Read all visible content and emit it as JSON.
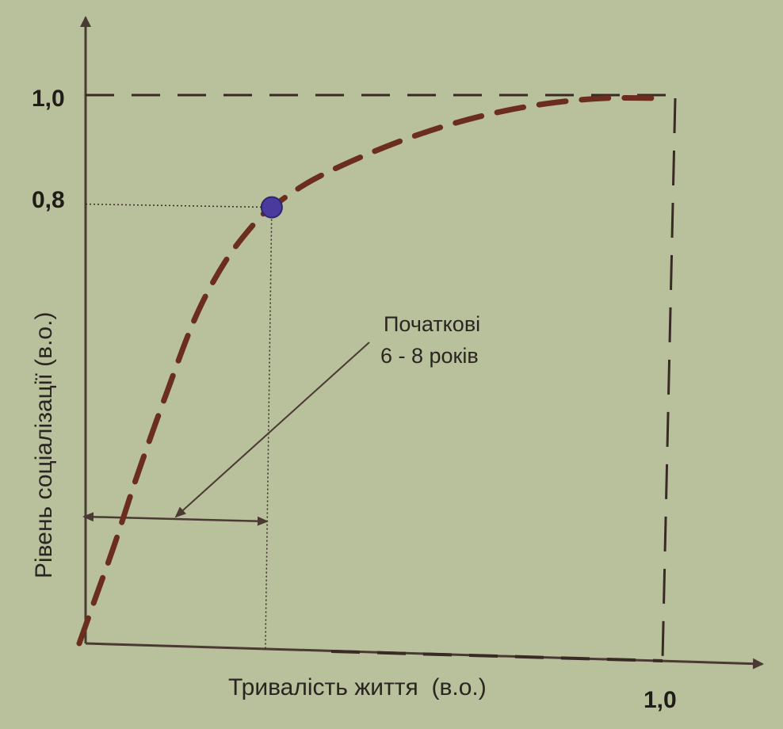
{
  "chart_data": {
    "type": "line",
    "title": "",
    "xlabel": "Тривалість життя  (в.о.)",
    "ylabel": "Рівень соціалізації (в.о.)",
    "xlim": [
      0,
      1.0
    ],
    "ylim": [
      0,
      1.0
    ],
    "x_tick_labels": [
      "1,0"
    ],
    "y_tick_labels": [
      "0,8",
      "1,0"
    ],
    "grid": false,
    "legend": "none",
    "series": [
      {
        "x": [
          0.0,
          0.03,
          0.06,
          0.1,
          0.15,
          0.2,
          0.25,
          0.3,
          0.33,
          0.4,
          0.5,
          0.6,
          0.7,
          0.8,
          0.9,
          1.0
        ],
        "y": [
          0.0,
          0.09,
          0.18,
          0.31,
          0.46,
          0.6,
          0.7,
          0.77,
          0.8,
          0.85,
          0.9,
          0.94,
          0.97,
          0.99,
          1.0,
          1.0
        ]
      }
    ],
    "highlight_point": {
      "x": 0.33,
      "y": 0.8
    },
    "interval": {
      "x_start": 0.0,
      "x_end": 0.33
    },
    "annotation": {
      "lines": [
        "Початкові",
        "6 - 8 років"
      ]
    },
    "colors": {
      "background": "#b9c09c",
      "curve": "#6b2e1e",
      "axis": "#4a3a33",
      "point": "#4a3a9e",
      "boundary": "#3a2a25"
    }
  }
}
